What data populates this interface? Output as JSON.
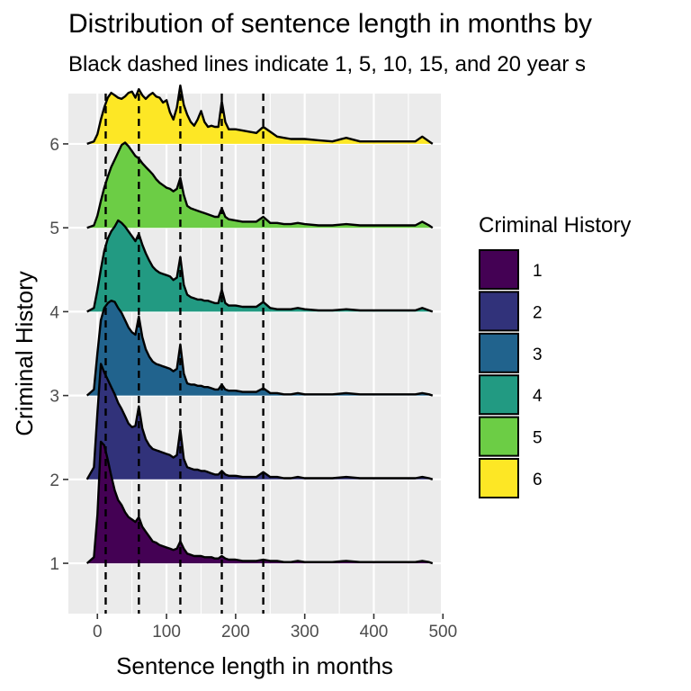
{
  "chart_data": {
    "type": "area",
    "subtype": "ridgeline-density",
    "title": "Distribution of sentence length in months by",
    "subtitle": "Black dashed lines indicate 1, 5, 10, 15, and 20 year s",
    "xlabel": "Sentence length in months",
    "ylabel": "Criminal History",
    "xlim": [
      -42,
      497
    ],
    "ylim": [
      0.4,
      6.6
    ],
    "x_ticks": [
      0,
      100,
      200,
      300,
      400,
      500
    ],
    "x_tick_labels": [
      "0",
      "100",
      "200",
      "300",
      "400",
      "500"
    ],
    "y_ticks": [
      1,
      2,
      3,
      4,
      5,
      6
    ],
    "y_tick_labels": [
      "1",
      "2",
      "3",
      "4",
      "5",
      "6"
    ],
    "reference_lines": [
      12,
      60,
      120,
      180,
      240
    ],
    "grid": true,
    "legend": {
      "title": "Criminal History",
      "position": "right",
      "entries": [
        "1",
        "2",
        "3",
        "4",
        "5",
        "6"
      ]
    },
    "colors": [
      "#440154",
      "#31327A",
      "#21638D",
      "#229A82",
      "#6CCD45",
      "#FDE725"
    ],
    "x": [
      -15,
      -5,
      0,
      5,
      10,
      15,
      20,
      25,
      30,
      35,
      40,
      45,
      50,
      55,
      60,
      65,
      70,
      75,
      80,
      85,
      90,
      95,
      100,
      105,
      110,
      115,
      120,
      125,
      130,
      135,
      140,
      145,
      150,
      155,
      160,
      165,
      170,
      175,
      180,
      185,
      190,
      200,
      210,
      220,
      230,
      240,
      250,
      260,
      270,
      280,
      290,
      300,
      320,
      340,
      360,
      380,
      400,
      420,
      440,
      460,
      470,
      480,
      485
    ],
    "series": [
      {
        "name": "1",
        "values": [
          0,
          0.05,
          0.4,
          1.0,
          0.97,
          0.85,
          0.72,
          0.6,
          0.52,
          0.48,
          0.42,
          0.38,
          0.36,
          0.34,
          0.38,
          0.3,
          0.26,
          0.22,
          0.18,
          0.17,
          0.15,
          0.14,
          0.13,
          0.12,
          0.11,
          0.12,
          0.18,
          0.12,
          0.08,
          0.07,
          0.06,
          0.06,
          0.06,
          0.05,
          0.05,
          0.05,
          0.04,
          0.04,
          0.06,
          0.04,
          0.03,
          0.03,
          0.02,
          0.02,
          0.02,
          0.03,
          0.02,
          0.02,
          0.01,
          0.01,
          0.02,
          0.01,
          0.01,
          0.01,
          0.02,
          0.01,
          0.01,
          0.01,
          0.01,
          0.01,
          0.02,
          0.01,
          0
        ]
      },
      {
        "name": "2",
        "values": [
          0,
          0.1,
          0.55,
          0.95,
          0.88,
          0.82,
          0.76,
          0.7,
          0.63,
          0.58,
          0.52,
          0.46,
          0.43,
          0.44,
          0.6,
          0.42,
          0.33,
          0.28,
          0.25,
          0.24,
          0.23,
          0.22,
          0.21,
          0.2,
          0.18,
          0.2,
          0.41,
          0.17,
          0.1,
          0.09,
          0.08,
          0.08,
          0.07,
          0.07,
          0.06,
          0.05,
          0.04,
          0.04,
          0.07,
          0.04,
          0.03,
          0.03,
          0.02,
          0.02,
          0.02,
          0.06,
          0.02,
          0.02,
          0.01,
          0.01,
          0.02,
          0.01,
          0.01,
          0.01,
          0.02,
          0.01,
          0.01,
          0.01,
          0.01,
          0.01,
          0.02,
          0.01,
          0
        ]
      },
      {
        "name": "3",
        "values": [
          0,
          0.05,
          0.35,
          0.62,
          0.72,
          0.76,
          0.78,
          0.77,
          0.72,
          0.68,
          0.62,
          0.56,
          0.52,
          0.5,
          0.65,
          0.48,
          0.38,
          0.32,
          0.28,
          0.26,
          0.25,
          0.24,
          0.23,
          0.22,
          0.2,
          0.22,
          0.42,
          0.18,
          0.1,
          0.09,
          0.09,
          0.08,
          0.08,
          0.07,
          0.07,
          0.06,
          0.05,
          0.05,
          0.09,
          0.05,
          0.04,
          0.04,
          0.03,
          0.03,
          0.03,
          0.06,
          0.02,
          0.02,
          0.01,
          0.01,
          0.02,
          0.01,
          0.01,
          0.01,
          0.02,
          0.01,
          0.01,
          0.01,
          0.01,
          0.01,
          0.02,
          0.01,
          0
        ]
      },
      {
        "name": "4",
        "values": [
          0,
          0.03,
          0.18,
          0.35,
          0.5,
          0.6,
          0.66,
          0.7,
          0.75,
          0.73,
          0.7,
          0.66,
          0.62,
          0.58,
          0.64,
          0.55,
          0.48,
          0.42,
          0.37,
          0.34,
          0.32,
          0.31,
          0.3,
          0.29,
          0.26,
          0.28,
          0.45,
          0.22,
          0.14,
          0.12,
          0.11,
          0.1,
          0.1,
          0.09,
          0.09,
          0.08,
          0.07,
          0.07,
          0.18,
          0.07,
          0.05,
          0.05,
          0.04,
          0.04,
          0.04,
          0.08,
          0.03,
          0.02,
          0.02,
          0.02,
          0.03,
          0.02,
          0.01,
          0.01,
          0.02,
          0.01,
          0.01,
          0.01,
          0.01,
          0.01,
          0.03,
          0.01,
          0
        ]
      },
      {
        "name": "5",
        "values": [
          0,
          0.02,
          0.1,
          0.22,
          0.33,
          0.42,
          0.5,
          0.56,
          0.62,
          0.68,
          0.7,
          0.67,
          0.63,
          0.59,
          0.57,
          0.53,
          0.5,
          0.47,
          0.44,
          0.4,
          0.37,
          0.35,
          0.33,
          0.32,
          0.3,
          0.32,
          0.41,
          0.27,
          0.18,
          0.16,
          0.15,
          0.14,
          0.13,
          0.12,
          0.11,
          0.1,
          0.09,
          0.09,
          0.16,
          0.09,
          0.07,
          0.06,
          0.05,
          0.05,
          0.05,
          0.09,
          0.04,
          0.04,
          0.03,
          0.03,
          0.04,
          0.03,
          0.02,
          0.02,
          0.03,
          0.02,
          0.02,
          0.02,
          0.02,
          0.02,
          0.05,
          0.02,
          0
        ]
      },
      {
        "name": "6",
        "values": [
          0,
          0.02,
          0.08,
          0.2,
          0.3,
          0.38,
          0.42,
          0.4,
          0.38,
          0.37,
          0.39,
          0.42,
          0.43,
          0.38,
          0.45,
          0.4,
          0.37,
          0.4,
          0.42,
          0.39,
          0.38,
          0.34,
          0.36,
          0.26,
          0.2,
          0.3,
          0.48,
          0.32,
          0.24,
          0.18,
          0.15,
          0.2,
          0.27,
          0.18,
          0.14,
          0.15,
          0.14,
          0.14,
          0.35,
          0.18,
          0.12,
          0.12,
          0.11,
          0.1,
          0.09,
          0.14,
          0.1,
          0.06,
          0.05,
          0.04,
          0.04,
          0.04,
          0.03,
          0.02,
          0.05,
          0.02,
          0.02,
          0.02,
          0.02,
          0.02,
          0.06,
          0.02,
          0
        ]
      }
    ]
  }
}
